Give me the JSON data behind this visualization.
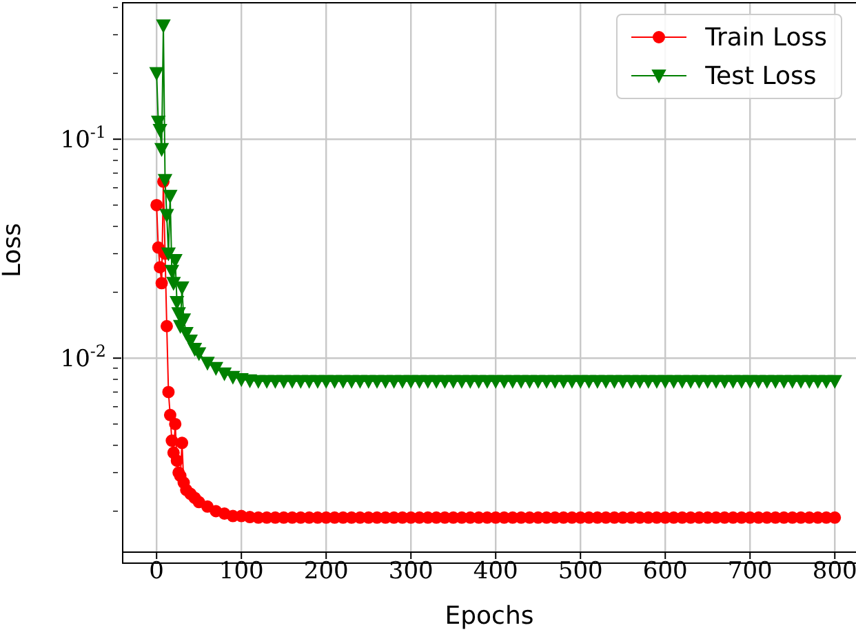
{
  "chart_data": {
    "type": "line",
    "xlabel": "Epochs",
    "ylabel": "Loss",
    "log": "y",
    "grid": true,
    "legend": "top right",
    "x": [
      0,
      2,
      4,
      6,
      8,
      10,
      12,
      14,
      16,
      18,
      20,
      22,
      24,
      26,
      28,
      30,
      32,
      35,
      40,
      45,
      50,
      60,
      70,
      80,
      90,
      100,
      110,
      120,
      130,
      140,
      150,
      160,
      170,
      180,
      190,
      200,
      210,
      220,
      230,
      240,
      250,
      260,
      270,
      280,
      290,
      300,
      310,
      320,
      330,
      340,
      350,
      360,
      370,
      380,
      390,
      400,
      410,
      420,
      430,
      440,
      450,
      460,
      470,
      480,
      490,
      500,
      510,
      520,
      530,
      540,
      550,
      560,
      570,
      580,
      590,
      600,
      610,
      620,
      630,
      640,
      650,
      660,
      670,
      680,
      690,
      700,
      710,
      720,
      730,
      740,
      750,
      760,
      770,
      780,
      790,
      800
    ],
    "series": [
      {
        "name": "Train Loss",
        "color": "#ff0000",
        "marker": "circle",
        "values": [
          0.05,
          0.032,
          0.026,
          0.022,
          0.064,
          0.03,
          0.014,
          0.007,
          0.0055,
          0.0042,
          0.0037,
          0.005,
          0.0034,
          0.003,
          0.0029,
          0.0041,
          0.0027,
          0.0025,
          0.0024,
          0.0023,
          0.0022,
          0.0021,
          0.002,
          0.00195,
          0.0019,
          0.0019,
          0.00188,
          0.00187,
          0.00187,
          0.00187,
          0.00187,
          0.00187,
          0.00187,
          0.00187,
          0.00187,
          0.00187,
          0.00187,
          0.00187,
          0.00187,
          0.00187,
          0.00187,
          0.00187,
          0.00187,
          0.00187,
          0.00187,
          0.00187,
          0.00187,
          0.00187,
          0.00187,
          0.00187,
          0.00187,
          0.00187,
          0.00187,
          0.00187,
          0.00187,
          0.00187,
          0.00187,
          0.00187,
          0.00187,
          0.00187,
          0.00187,
          0.00187,
          0.00187,
          0.00187,
          0.00187,
          0.00187,
          0.00187,
          0.00187,
          0.00187,
          0.00187,
          0.00187,
          0.00187,
          0.00187,
          0.00187,
          0.00187,
          0.00187,
          0.00187,
          0.00187,
          0.00187,
          0.00187,
          0.00187,
          0.00187,
          0.00187,
          0.00187,
          0.00187,
          0.00187,
          0.00187,
          0.00187,
          0.00187,
          0.00187,
          0.00187,
          0.00187,
          0.00187,
          0.00187,
          0.00187,
          0.00187
        ]
      },
      {
        "name": "Test Loss",
        "color": "#008000",
        "marker": "triangle",
        "values": [
          0.2,
          0.12,
          0.11,
          0.09,
          0.33,
          0.065,
          0.045,
          0.03,
          0.055,
          0.025,
          0.022,
          0.028,
          0.018,
          0.016,
          0.014,
          0.021,
          0.015,
          0.013,
          0.012,
          0.011,
          0.0105,
          0.0095,
          0.009,
          0.0085,
          0.0082,
          0.008,
          0.0079,
          0.00785,
          0.00785,
          0.00785,
          0.00785,
          0.00785,
          0.00785,
          0.00785,
          0.00785,
          0.00785,
          0.00785,
          0.00785,
          0.00785,
          0.00785,
          0.00785,
          0.00785,
          0.00785,
          0.00785,
          0.00785,
          0.00785,
          0.00785,
          0.00785,
          0.00785,
          0.00785,
          0.00785,
          0.00785,
          0.00785,
          0.00785,
          0.00785,
          0.00785,
          0.00785,
          0.00785,
          0.00785,
          0.00785,
          0.00785,
          0.00785,
          0.00785,
          0.00785,
          0.00785,
          0.00785,
          0.00785,
          0.00785,
          0.00785,
          0.00785,
          0.00785,
          0.00785,
          0.00785,
          0.00785,
          0.00785,
          0.00785,
          0.00785,
          0.00785,
          0.00785,
          0.00785,
          0.00785,
          0.00785,
          0.00785,
          0.00785,
          0.00785,
          0.00785,
          0.00785,
          0.00785,
          0.00785,
          0.00785,
          0.00785,
          0.00785,
          0.00785,
          0.00785,
          0.00785,
          0.00785
        ]
      }
    ],
    "xlim": [
      -40,
      825
    ],
    "xticks": [
      0,
      100,
      200,
      300,
      400,
      500,
      600,
      700,
      800
    ],
    "ylim": [
      0.0013,
      0.42
    ],
    "yticks": [
      {
        "value": 0.002,
        "label": null
      },
      {
        "value": 0.003,
        "label": null
      },
      {
        "value": 0.004,
        "label": null
      },
      {
        "value": 0.005,
        "label": null
      },
      {
        "value": 0.006,
        "label": null
      },
      {
        "value": 0.007,
        "label": null
      },
      {
        "value": 0.008,
        "label": null
      },
      {
        "value": 0.009,
        "label": null
      },
      {
        "value": 0.01,
        "label": "10$^{-2}$"
      },
      {
        "value": 0.02,
        "label": null
      },
      {
        "value": 0.03,
        "label": null
      },
      {
        "value": 0.04,
        "label": null
      },
      {
        "value": 0.05,
        "label": null
      },
      {
        "value": 0.06,
        "label": null
      },
      {
        "value": 0.07,
        "label": null
      },
      {
        "value": 0.08,
        "label": null
      },
      {
        "value": 0.09,
        "label": null
      },
      {
        "value": 0.1,
        "label": "10$^{-1}$"
      },
      {
        "value": 0.2,
        "label": null
      },
      {
        "value": 0.3,
        "label": null
      },
      {
        "value": 0.4,
        "label": null
      }
    ]
  }
}
